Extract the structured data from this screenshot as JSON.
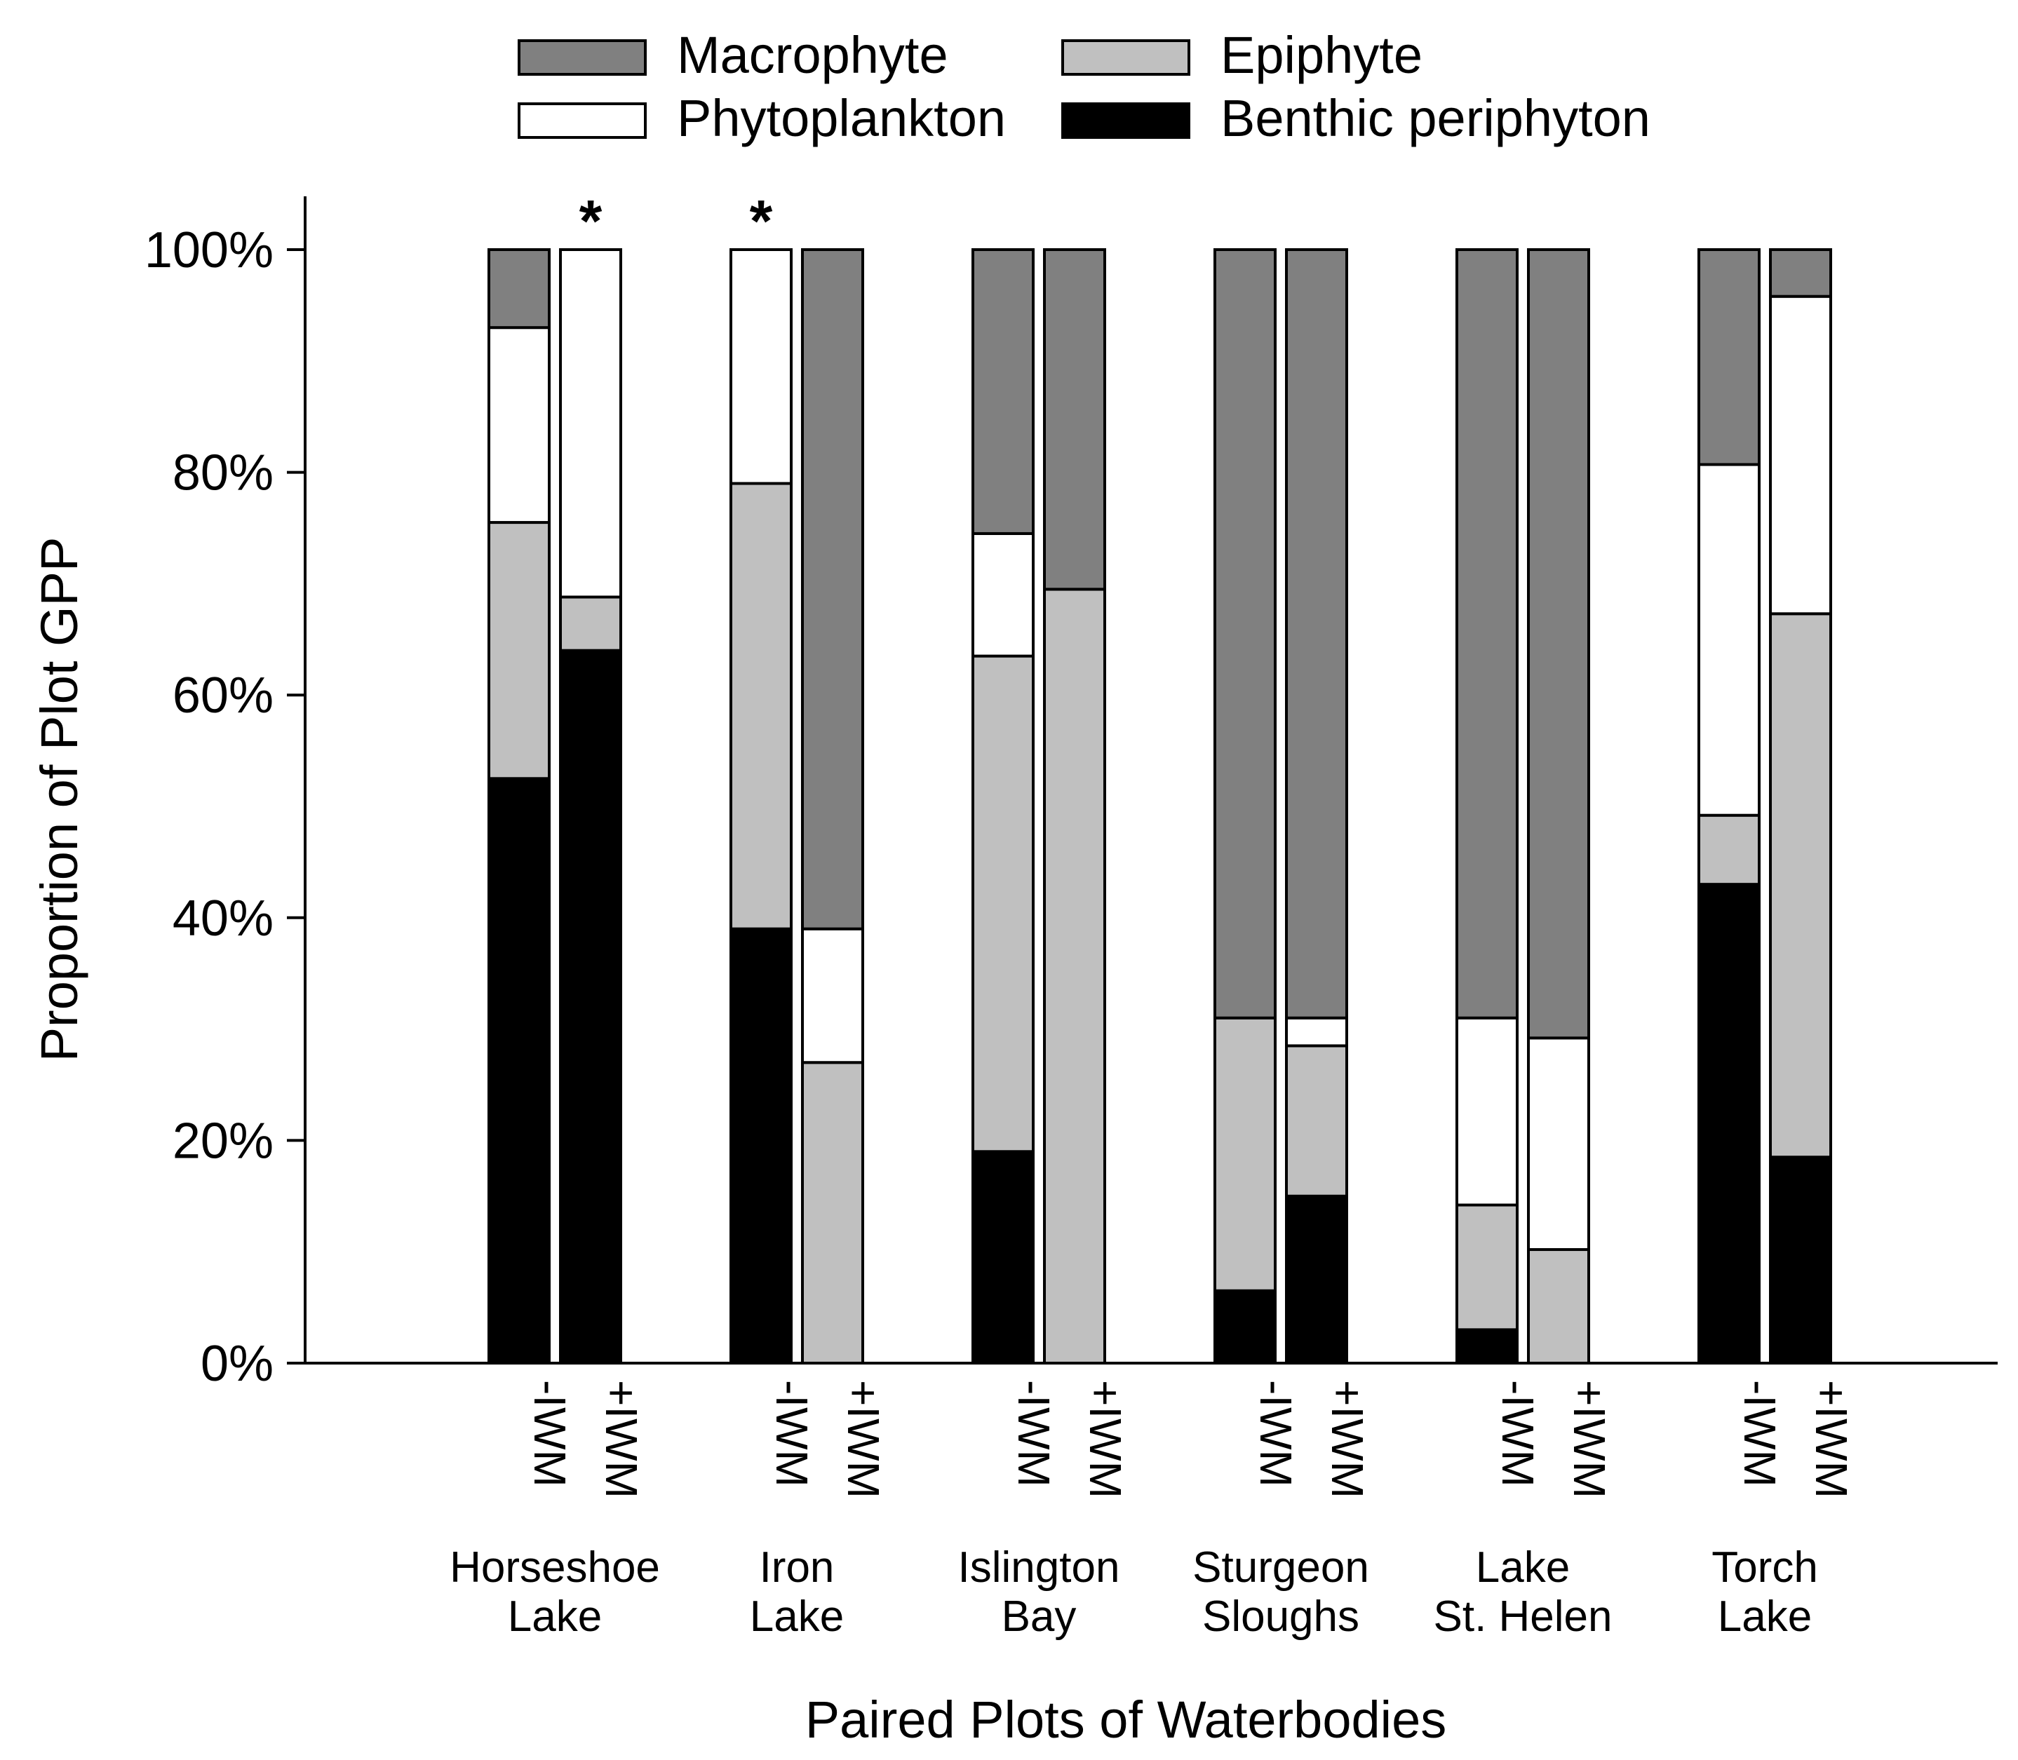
{
  "chart_data": {
    "type": "bar",
    "stacked": true,
    "normalized": true,
    "ylabel": "Proportion of Plot GPP",
    "xlabel": "Paired Plots of Waterbodies",
    "ylim": [
      0,
      100
    ],
    "yticks": [
      "0%",
      "20%",
      "40%",
      "60%",
      "80%",
      "100%"
    ],
    "yticks_values": [
      0,
      20,
      40,
      60,
      80,
      100
    ],
    "legend_position": "top",
    "significance_marker": "*",
    "legend": [
      {
        "name": "Macrophyte",
        "color": "#808080"
      },
      {
        "name": "Epiphyte",
        "color": "#c0c0c0"
      },
      {
        "name": "Phytoplankton",
        "color": "#ffffff"
      },
      {
        "name": "Benthic periphyton",
        "color": "#000000"
      }
    ],
    "stack_order": [
      "Benthic periphyton",
      "Epiphyte",
      "Phytoplankton",
      "Macrophyte"
    ],
    "groups": [
      {
        "name_lines": [
          "Horseshoe",
          "Lake"
        ],
        "bars": [
          {
            "label": "-IWM",
            "significant": false,
            "values": {
              "Benthic periphyton": 52.5,
              "Epiphyte": 23.0,
              "Phytoplankton": 17.5,
              "Macrophyte": 7.0
            }
          },
          {
            "label": "+IWM",
            "significant": true,
            "values": {
              "Benthic periphyton": 64.0,
              "Epiphyte": 4.8,
              "Phytoplankton": 31.2,
              "Macrophyte": 0.0
            }
          }
        ]
      },
      {
        "name_lines": [
          "Iron",
          "Lake"
        ],
        "bars": [
          {
            "label": "-IWM",
            "significant": true,
            "values": {
              "Benthic periphyton": 39.0,
              "Epiphyte": 40.0,
              "Phytoplankton": 21.0,
              "Macrophyte": 0.0
            }
          },
          {
            "label": "+IWM",
            "significant": false,
            "values": {
              "Benthic periphyton": 0.0,
              "Epiphyte": 27.0,
              "Phytoplankton": 12.0,
              "Macrophyte": 61.0
            }
          }
        ]
      },
      {
        "name_lines": [
          "Islington",
          "Bay"
        ],
        "bars": [
          {
            "label": "-IWM",
            "significant": false,
            "values": {
              "Benthic periphyton": 19.0,
              "Epiphyte": 44.5,
              "Phytoplankton": 11.0,
              "Macrophyte": 25.5
            }
          },
          {
            "label": "+IWM",
            "significant": false,
            "values": {
              "Benthic periphyton": 0.0,
              "Epiphyte": 69.5,
              "Phytoplankton": 0.0,
              "Macrophyte": 30.5
            }
          }
        ]
      },
      {
        "name_lines": [
          "Sturgeon",
          "Sloughs"
        ],
        "bars": [
          {
            "label": "-IWM",
            "significant": false,
            "values": {
              "Benthic periphyton": 6.5,
              "Epiphyte": 24.5,
              "Phytoplankton": 0.0,
              "Macrophyte": 69.0
            }
          },
          {
            "label": "+IWM",
            "significant": false,
            "values": {
              "Benthic periphyton": 15.0,
              "Epiphyte": 13.5,
              "Phytoplankton": 2.5,
              "Macrophyte": 69.0
            }
          }
        ]
      },
      {
        "name_lines": [
          "Lake",
          "St. Helen"
        ],
        "bars": [
          {
            "label": "-IWM",
            "significant": false,
            "values": {
              "Benthic periphyton": 3.0,
              "Epiphyte": 11.2,
              "Phytoplankton": 16.8,
              "Macrophyte": 69.0
            }
          },
          {
            "label": "+IWM",
            "significant": false,
            "values": {
              "Benthic periphyton": 0.0,
              "Epiphyte": 10.2,
              "Phytoplankton": 19.0,
              "Macrophyte": 70.8
            }
          }
        ]
      },
      {
        "name_lines": [
          "Torch",
          "Lake"
        ],
        "bars": [
          {
            "label": "-IWM",
            "significant": false,
            "values": {
              "Benthic periphyton": 43.0,
              "Epiphyte": 6.2,
              "Phytoplankton": 31.5,
              "Macrophyte": 19.3
            }
          },
          {
            "label": "+IWM",
            "significant": false,
            "values": {
              "Benthic periphyton": 18.5,
              "Epiphyte": 48.8,
              "Phytoplankton": 28.5,
              "Macrophyte": 4.2
            }
          }
        ]
      }
    ]
  }
}
